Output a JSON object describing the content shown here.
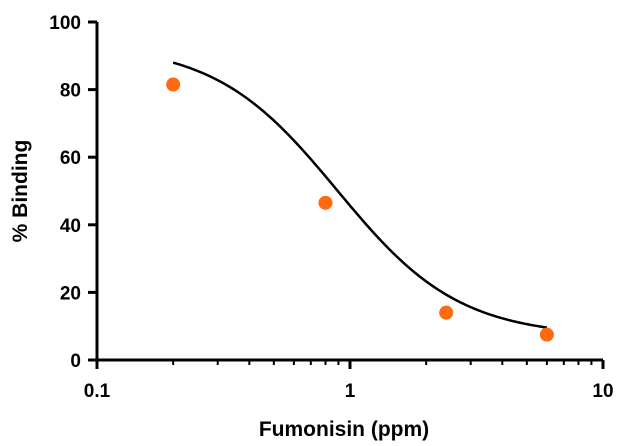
{
  "chart_data": {
    "type": "scatter",
    "xlabel": "Fumonisin (ppm)",
    "ylabel": "% Binding",
    "xscale": "log",
    "xlim": [
      0.1,
      10
    ],
    "ylim": [
      0,
      100
    ],
    "x_ticks": [
      {
        "value": 0.1,
        "label": "0.1"
      },
      {
        "value": 1,
        "label": "1"
      },
      {
        "value": 10,
        "label": "10"
      }
    ],
    "y_ticks": [
      {
        "value": 0,
        "label": "0"
      },
      {
        "value": 20,
        "label": "20"
      },
      {
        "value": 40,
        "label": "40"
      },
      {
        "value": 60,
        "label": "60"
      },
      {
        "value": 80,
        "label": "80"
      },
      {
        "value": 100,
        "label": "100"
      }
    ],
    "grid": false,
    "points": [
      {
        "x": 0.2,
        "y": 81.5
      },
      {
        "x": 0.8,
        "y": 46.5
      },
      {
        "x": 2.4,
        "y": 14
      },
      {
        "x": 6.0,
        "y": 7.5
      }
    ],
    "fit_curve": {
      "model": "four-parameter logistic",
      "bottom": 6.9,
      "top": 93.5,
      "ec50": 0.89,
      "hill": 1.8,
      "x_range": [
        0.2,
        6.0
      ]
    },
    "colors": {
      "points": "#ff6a10",
      "curve": "#000000",
      "axes": "#000000"
    }
  }
}
